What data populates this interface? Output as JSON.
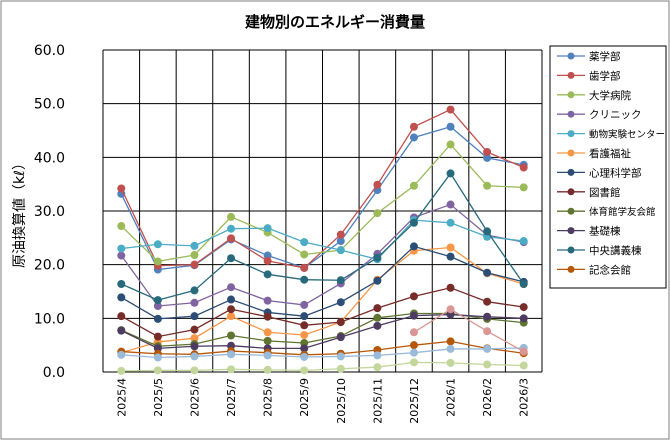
{
  "chart_data": {
    "type": "line",
    "title": "建物別のエネルギー消費量",
    "ylabel": "原油換算値（kℓ）",
    "xlabel": "",
    "ylim": [
      0,
      60
    ],
    "yticks": [
      "0.0",
      "10.0",
      "20.0",
      "30.0",
      "40.0",
      "50.0",
      "60.0"
    ],
    "grid": true,
    "legend_position": "right",
    "categories": [
      "2025/4",
      "2025/5",
      "2025/6",
      "2025/7",
      "2025/8",
      "2025/9",
      "2025/10",
      "2025/11",
      "2025/12",
      "2026/1",
      "2026/2",
      "2026/3"
    ],
    "series": [
      {
        "name": "薬学部",
        "color": "#4F81BD",
        "values": [
          33.2,
          19.1,
          19.9,
          24.7,
          21.7,
          19.4,
          24.4,
          33.9,
          43.7,
          45.7,
          39.9,
          38.6
        ]
      },
      {
        "name": "歯学部",
        "color": "#C0504D",
        "values": [
          34.2,
          19.8,
          20.0,
          24.9,
          20.7,
          19.4,
          25.6,
          34.9,
          45.7,
          48.9,
          41.0,
          38.1
        ]
      },
      {
        "name": "大学病院",
        "color": "#9BBB59",
        "values": [
          27.2,
          20.6,
          21.8,
          28.9,
          26.0,
          21.9,
          22.7,
          29.6,
          34.7,
          42.4,
          34.7,
          34.4
        ]
      },
      {
        "name": "クリニック",
        "color": "#8064A2",
        "values": [
          21.7,
          12.3,
          12.9,
          15.8,
          13.3,
          12.5,
          16.5,
          22.0,
          28.8,
          31.2,
          25.5,
          24.2
        ]
      },
      {
        "name": "動物実験センター",
        "color": "#4BACC6",
        "values": [
          23.0,
          23.8,
          23.5,
          26.7,
          26.8,
          24.2,
          22.7,
          21.0,
          28.3,
          27.8,
          25.2,
          24.4
        ]
      },
      {
        "name": "看護福祉",
        "color": "#F79646",
        "values": [
          3.6,
          5.6,
          6.3,
          10.4,
          7.4,
          6.9,
          9.3,
          17.2,
          22.6,
          23.2,
          18.4,
          16.4
        ]
      },
      {
        "name": "心理科学部",
        "color": "#2C4D75",
        "values": [
          13.9,
          9.9,
          10.4,
          13.5,
          11.1,
          10.4,
          13.0,
          17.0,
          23.4,
          21.5,
          18.5,
          16.8
        ]
      },
      {
        "name": "図書館",
        "color": "#772C2A",
        "values": [
          10.4,
          6.6,
          7.9,
          11.7,
          10.3,
          8.7,
          9.3,
          11.9,
          14.1,
          15.7,
          13.1,
          12.1
        ]
      },
      {
        "name": "体育館学友会館",
        "color": "#5F7530",
        "values": [
          7.8,
          4.8,
          5.2,
          6.8,
          5.8,
          5.4,
          6.7,
          10.1,
          10.9,
          10.9,
          9.9,
          9.2
        ]
      },
      {
        "name": "基礎棟",
        "color": "#4D3B62",
        "values": [
          7.7,
          4.4,
          4.8,
          4.9,
          4.4,
          4.4,
          6.5,
          8.6,
          10.5,
          10.7,
          10.3,
          10.0
        ]
      },
      {
        "name": "中央講義棟",
        "color": "#276A7C",
        "values": [
          16.4,
          13.4,
          15.2,
          21.2,
          18.2,
          17.2,
          17.1,
          21.3,
          27.8,
          37.0,
          26.2,
          16.4
        ]
      },
      {
        "name": "記念会館",
        "color": "#B65708",
        "values": [
          3.8,
          3.4,
          3.3,
          3.9,
          3.6,
          3.2,
          3.4,
          4.1,
          5.0,
          5.7,
          4.4,
          3.5
        ]
      },
      {
        "name": "",
        "color": "#9ABAD9",
        "values": [
          3.2,
          2.7,
          2.9,
          3.3,
          3.1,
          2.8,
          2.9,
          3.1,
          3.6,
          4.3,
          4.3,
          4.5
        ]
      },
      {
        "name": "",
        "color": "#D99694",
        "values": [
          null,
          null,
          null,
          null,
          null,
          null,
          null,
          null,
          7.4,
          11.7,
          7.6,
          3.8
        ]
      },
      {
        "name": "",
        "color": "#C3D69B",
        "values": [
          0.2,
          0.3,
          0.3,
          0.5,
          0.4,
          0.3,
          0.6,
          0.9,
          1.8,
          1.7,
          1.4,
          1.2
        ]
      }
    ]
  }
}
